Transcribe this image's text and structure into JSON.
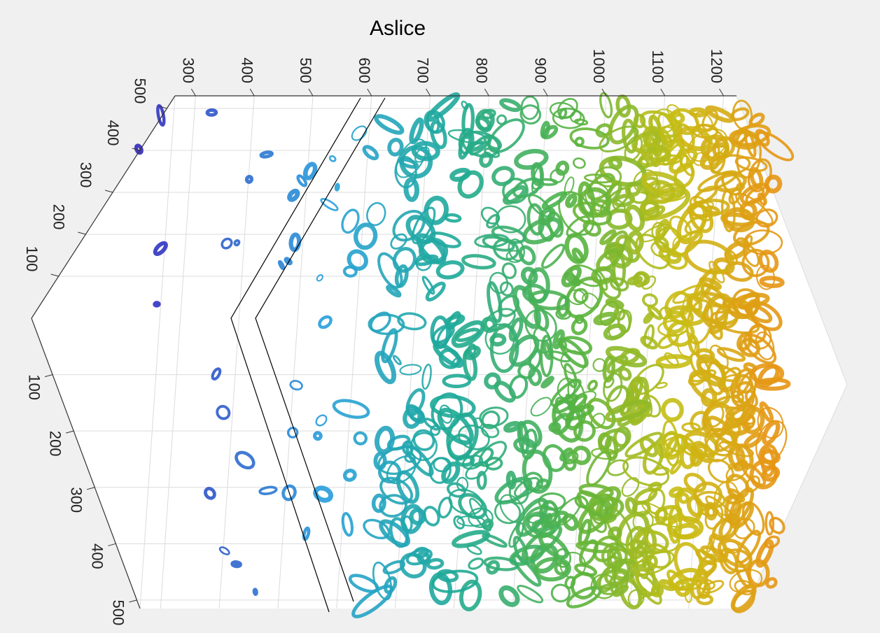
{
  "chart_data": {
    "type": "isosurface",
    "title": "Aslice",
    "xlim": [
      265,
      1222
    ],
    "xticks": [
      300,
      400,
      500,
      600,
      700,
      800,
      900,
      1000,
      1100,
      1200
    ],
    "ylim": [
      0,
      530
    ],
    "yticks": [
      100,
      200,
      300,
      400,
      500
    ],
    "zlim": [
      0,
      515
    ],
    "zticks": [
      100,
      200,
      300,
      400,
      500
    ],
    "grid": true
  }
}
